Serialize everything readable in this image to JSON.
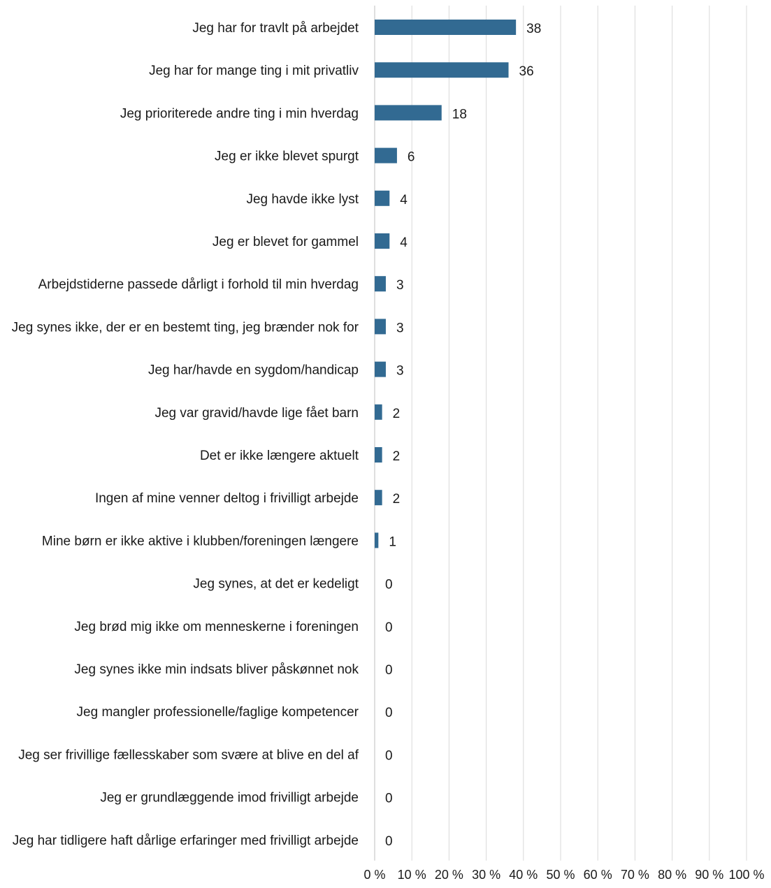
{
  "chart_data": {
    "type": "bar",
    "orientation": "horizontal",
    "title": "",
    "xlabel": "",
    "ylabel": "",
    "xlim": [
      0,
      100
    ],
    "x_ticks": [
      "0 %",
      "10 %",
      "20 %",
      "30 %",
      "40 %",
      "50 %",
      "60 %",
      "70 %",
      "80 %",
      "90 %",
      "100 %"
    ],
    "grid": true,
    "legend": "none",
    "bar_color": "#326a92",
    "categories": [
      "Jeg har for travlt på arbejdet",
      "Jeg har for mange ting i mit privatliv",
      "Jeg prioriterede andre ting i min hverdag",
      "Jeg er ikke blevet spurgt",
      "Jeg havde ikke lyst",
      "Jeg er blevet for gammel",
      "Arbejdstiderne passede dårligt i forhold til min hverdag",
      "Jeg synes ikke, der er en bestemt ting, jeg brænder nok for",
      "Jeg har/havde en sygdom/handicap",
      "Jeg var gravid/havde lige fået barn",
      "Det er ikke længere aktuelt",
      "Ingen af mine venner deltog i frivilligt arbejde",
      "Mine børn er ikke aktive i klubben/foreningen længere",
      "Jeg synes, at det er kedeligt",
      "Jeg brød mig ikke om menneskerne i foreningen",
      "Jeg synes ikke min indsats bliver påskønnet nok",
      "Jeg mangler professionelle/faglige kompetencer",
      "Jeg ser frivillige fællesskaber som svære at blive en del af",
      "Jeg er grundlæggende imod frivilligt arbejde",
      "Jeg har tidligere haft dårlige erfaringer med frivilligt arbejde"
    ],
    "values": [
      38,
      36,
      18,
      6,
      4,
      4,
      3,
      3,
      3,
      2,
      2,
      2,
      1,
      0,
      0,
      0,
      0,
      0,
      0,
      0
    ],
    "data_labels": [
      "38",
      "36",
      "18",
      "6",
      "4",
      "4",
      "3",
      "3",
      "3",
      "2",
      "2",
      "2",
      "1",
      "0",
      "0",
      "0",
      "0",
      "0",
      "0",
      "0"
    ]
  }
}
